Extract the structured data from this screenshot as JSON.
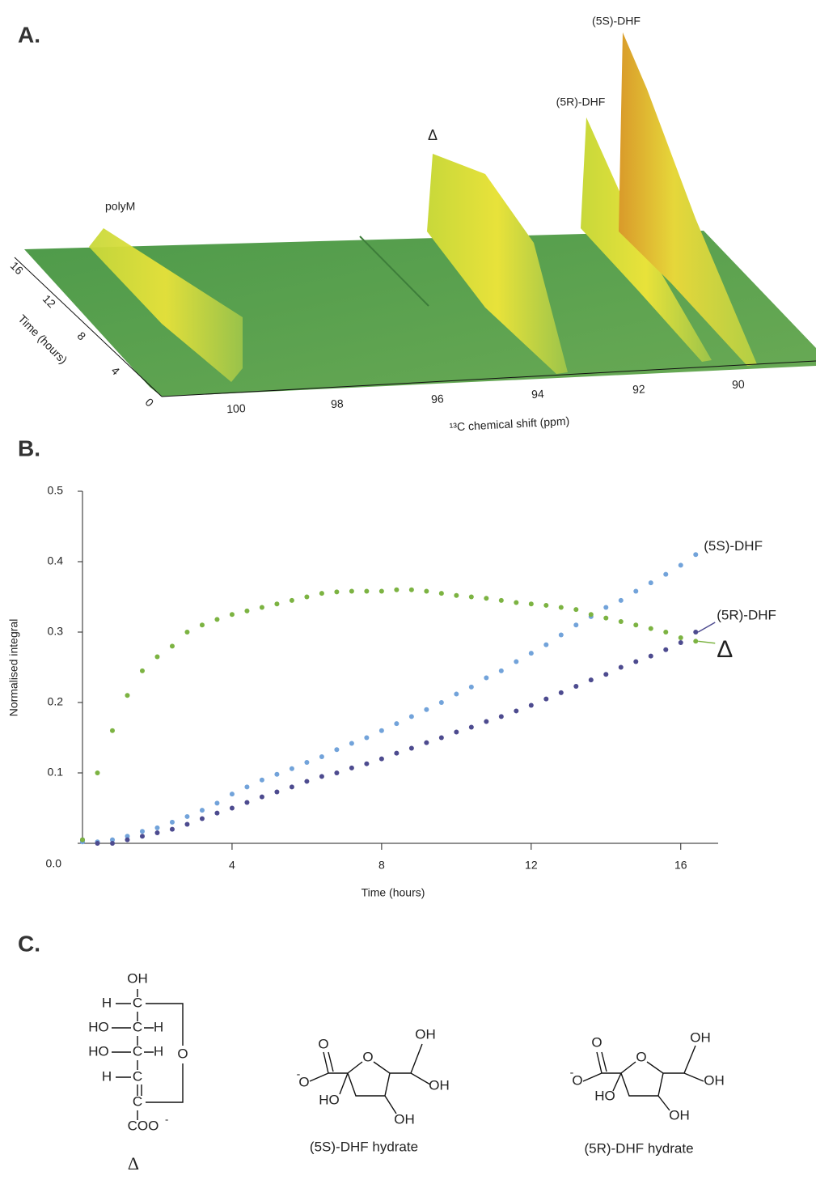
{
  "panel_a": {
    "label": "A.",
    "peaks": [
      "polyM",
      "Δ",
      "(5R)-DHF",
      "(5S)-DHF"
    ],
    "x_axis": {
      "title": "¹³C chemical shift (ppm)",
      "ticks": [
        100,
        98,
        96,
        94,
        92,
        90
      ]
    },
    "y_axis": {
      "title": "Time (hours)",
      "ticks": [
        0,
        4,
        8,
        12,
        16
      ]
    }
  },
  "chart_data": {
    "type": "scatter",
    "label": "B.",
    "x_label": "Time (hours)",
    "y_label": "Normalised integral",
    "xlim": [
      0,
      17
    ],
    "ylim": [
      0,
      0.5
    ],
    "xticks": [
      4,
      8,
      12,
      16
    ],
    "yticks": [
      {
        "value": 0,
        "label": "0.0"
      },
      0.1,
      0.2,
      0.3,
      0.4,
      0.5
    ],
    "x": [
      0,
      0.4,
      0.8,
      1.2,
      1.6,
      2.0,
      2.4,
      2.8,
      3.2,
      3.6,
      4.0,
      4.4,
      4.8,
      5.2,
      5.6,
      6.0,
      6.4,
      6.8,
      7.2,
      7.6,
      8.0,
      8.4,
      8.8,
      9.2,
      9.6,
      10.0,
      10.4,
      10.8,
      11.2,
      11.6,
      12.0,
      12.4,
      12.8,
      13.2,
      13.6,
      14.0,
      14.4,
      14.8,
      15.2,
      15.6,
      16.0,
      16.4
    ],
    "series": [
      {
        "name": "(5S)-DHF",
        "color": "#72a3da",
        "values": [
          0.002,
          0.002,
          0.005,
          0.01,
          0.017,
          0.022,
          0.03,
          0.038,
          0.047,
          0.057,
          0.07,
          0.08,
          0.09,
          0.098,
          0.106,
          0.115,
          0.123,
          0.133,
          0.142,
          0.15,
          0.16,
          0.17,
          0.18,
          0.19,
          0.2,
          0.212,
          0.222,
          0.235,
          0.245,
          0.258,
          0.27,
          0.282,
          0.296,
          0.31,
          0.322,
          0.335,
          0.345,
          0.358,
          0.37,
          0.382,
          0.395,
          0.41
        ]
      },
      {
        "name": "(5R)-DHF",
        "color": "#4d4b8f",
        "values": [
          0.005,
          0.0,
          0.0,
          0.005,
          0.01,
          0.015,
          0.02,
          0.027,
          0.035,
          0.043,
          0.05,
          0.058,
          0.066,
          0.073,
          0.08,
          0.088,
          0.095,
          0.1,
          0.107,
          0.113,
          0.12,
          0.128,
          0.135,
          0.143,
          0.15,
          0.158,
          0.165,
          0.173,
          0.18,
          0.188,
          0.196,
          0.205,
          0.214,
          0.223,
          0.232,
          0.24,
          0.25,
          0.258,
          0.266,
          0.275,
          0.285,
          0.3
        ]
      },
      {
        "name": "Δ",
        "color": "#7cb342",
        "values": [
          0.005,
          0.1,
          0.16,
          0.21,
          0.245,
          0.265,
          0.28,
          0.3,
          0.31,
          0.318,
          0.325,
          0.33,
          0.335,
          0.34,
          0.345,
          0.35,
          0.355,
          0.357,
          0.358,
          0.358,
          0.358,
          0.36,
          0.36,
          0.358,
          0.355,
          0.352,
          0.35,
          0.348,
          0.345,
          0.342,
          0.34,
          0.338,
          0.335,
          0.332,
          0.325,
          0.32,
          0.315,
          0.31,
          0.305,
          0.3,
          0.292,
          0.287
        ]
      }
    ]
  },
  "panel_c": {
    "label": "C.",
    "structures": [
      {
        "atoms": [
          "OH",
          "H",
          "C",
          "HO",
          "C",
          "H",
          "HO",
          "C",
          "H",
          "O",
          "H",
          "C",
          "C",
          "COO",
          "-"
        ],
        "caption": "Δ"
      },
      {
        "atoms": [
          "O",
          "O",
          "-",
          "O",
          "OH",
          "OH",
          "HO",
          "OH"
        ],
        "caption": "(5S)-DHF hydrate"
      },
      {
        "atoms": [
          "O",
          "O",
          "-",
          "O",
          "OH",
          "OH",
          "HO",
          "OH"
        ],
        "caption": "(5R)-DHF hydrate"
      }
    ]
  }
}
